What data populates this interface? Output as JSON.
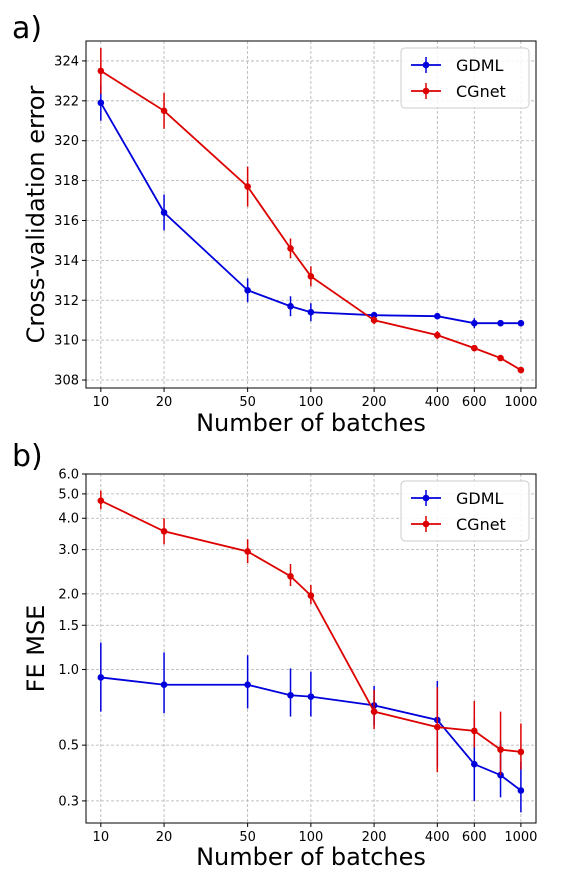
{
  "chart_data": [
    {
      "panel_label": "a)",
      "type": "line",
      "xlabel": "Number of batches",
      "ylabel": "Cross-validation error",
      "xscale": "log",
      "xlim": [
        8.5,
        1180
      ],
      "ylim": [
        307.6,
        325.0
      ],
      "xticks": [
        10,
        20,
        50,
        100,
        200,
        400,
        600,
        1000
      ],
      "xtick_labels": [
        "10",
        "20",
        "50",
        "100",
        "200",
        "400",
        "600",
        "1000"
      ],
      "yticks": [
        308,
        310,
        312,
        314,
        316,
        318,
        320,
        322,
        324
      ],
      "ytick_labels": [
        "308",
        "310",
        "312",
        "314",
        "316",
        "318",
        "320",
        "322",
        "324"
      ],
      "grid": true,
      "legend": "top-right",
      "series": [
        {
          "name": "GDML",
          "color": "#0000dd",
          "x": [
            10,
            20,
            50,
            80,
            100,
            200,
            400,
            600,
            800,
            1000
          ],
          "y": [
            321.9,
            316.4,
            312.5,
            311.7,
            311.4,
            311.25,
            311.2,
            310.85,
            310.85,
            310.85
          ],
          "err": [
            0.9,
            0.9,
            0.6,
            0.5,
            0.45,
            0.15,
            0.15,
            0.25,
            0.15,
            0.15
          ]
        },
        {
          "name": "CGnet",
          "color": "#dd0000",
          "x": [
            10,
            20,
            50,
            80,
            100,
            200,
            400,
            600,
            800,
            1000
          ],
          "y": [
            323.5,
            321.5,
            317.7,
            314.6,
            313.2,
            311.0,
            310.25,
            309.6,
            309.1,
            308.5
          ],
          "err": [
            1.15,
            0.9,
            1.0,
            0.5,
            0.5,
            0.2,
            0.2,
            0.15,
            0.1,
            0.1
          ]
        }
      ]
    },
    {
      "panel_label": "b)",
      "type": "line",
      "xlabel": "Number of batches",
      "ylabel": "FE MSE",
      "xscale": "log",
      "yscale": "log",
      "xlim": [
        8.5,
        1180
      ],
      "ylim": [
        0.245,
        6.0
      ],
      "xticks": [
        10,
        20,
        50,
        100,
        200,
        400,
        600,
        1000
      ],
      "xtick_labels": [
        "10",
        "20",
        "50",
        "100",
        "200",
        "400",
        "600",
        "1000"
      ],
      "yticks": [
        0.3,
        0.5,
        1.0,
        1.5,
        2.0,
        3.0,
        4.0,
        5.0,
        6.0
      ],
      "ytick_labels": [
        "0.3",
        "0.5",
        "1.0",
        "1.5",
        "2.0",
        "3.0",
        "4.0",
        "5.0",
        "6.0"
      ],
      "grid": true,
      "legend": "top-right",
      "series": [
        {
          "name": "GDML",
          "color": "#0000dd",
          "x": [
            10,
            20,
            50,
            80,
            100,
            200,
            400,
            600,
            800,
            1000
          ],
          "y": [
            0.93,
            0.87,
            0.87,
            0.79,
            0.78,
            0.72,
            0.63,
            0.42,
            0.38,
            0.33
          ],
          "err_low": [
            0.25,
            0.2,
            0.17,
            0.14,
            0.13,
            0.12,
            0.22,
            0.12,
            0.07,
            0.06
          ],
          "err_high": [
            0.35,
            0.3,
            0.27,
            0.22,
            0.2,
            0.14,
            0.27,
            0.22,
            0.14,
            0.1
          ]
        },
        {
          "name": "CGnet",
          "color": "#dd0000",
          "x": [
            10,
            20,
            50,
            80,
            100,
            200,
            400,
            600,
            800,
            1000
          ],
          "y": [
            4.7,
            3.55,
            2.95,
            2.35,
            1.97,
            0.68,
            0.59,
            0.57,
            0.48,
            0.47
          ],
          "err_low": [
            0.35,
            0.4,
            0.3,
            0.2,
            0.15,
            0.1,
            0.2,
            0.08,
            0.1,
            0.07
          ],
          "err_high": [
            0.45,
            0.45,
            0.35,
            0.28,
            0.2,
            0.15,
            0.26,
            0.18,
            0.2,
            0.14
          ]
        }
      ]
    }
  ]
}
